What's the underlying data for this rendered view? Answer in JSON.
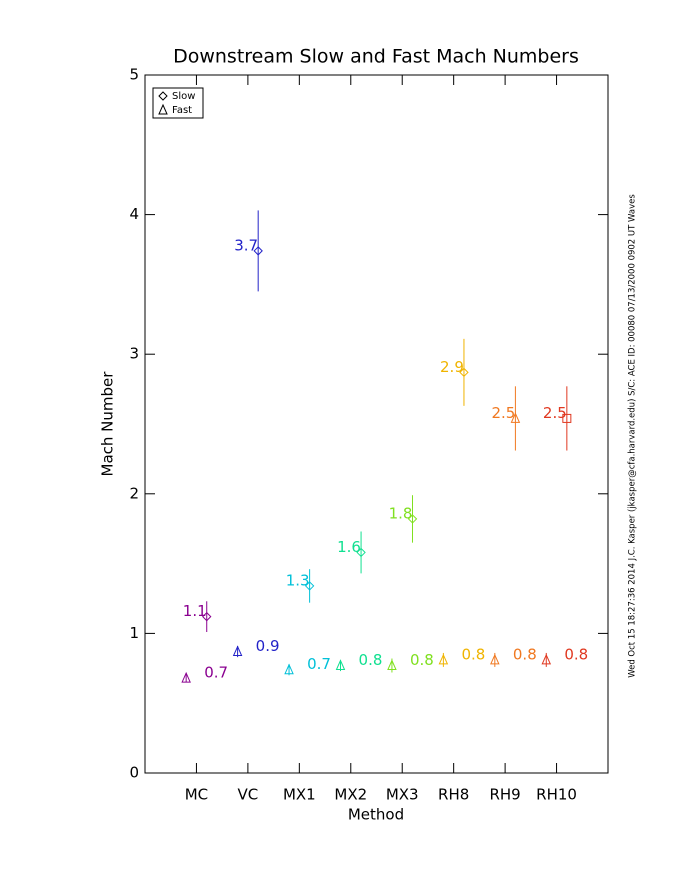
{
  "chart_data": {
    "type": "errorbar",
    "title": "Downstream Slow and Fast Mach Numbers",
    "x_label": "Method",
    "y_label": "Mach Number",
    "footnote": "Wed Oct 15 18:27:36 2014   J.C. Kasper (jkasper@cfa.harvard.edu)   S/C: ACE ID: 00080 07/13/2000   0902 UT Waves",
    "categories": [
      "MC",
      "VC",
      "MX1",
      "MX2",
      "MX3",
      "RH8",
      "RH9",
      "RH10"
    ],
    "colors": [
      "#8a0090",
      "#2222c8",
      "#00c0d8",
      "#10e090",
      "#80e020",
      "#f0b400",
      "#f07820",
      "#e03820"
    ],
    "ylim": [
      0,
      5
    ],
    "yticks": [
      0,
      1,
      2,
      3,
      4,
      5
    ],
    "legend": "upper left",
    "series": [
      {
        "name": "Slow",
        "marker": "diamond",
        "markers": [
          "diamond",
          "diamond",
          "diamond",
          "diamond",
          "diamond",
          "diamond",
          "triangle",
          "square"
        ],
        "values": [
          1.12,
          3.74,
          1.34,
          1.58,
          1.82,
          2.87,
          2.54,
          2.54
        ],
        "errors": [
          0.11,
          0.29,
          0.12,
          0.15,
          0.17,
          0.24,
          0.23,
          0.23
        ],
        "value_labels": [
          "1.1",
          "3.7",
          "1.3",
          "1.6",
          "1.8",
          "2.9",
          "2.5",
          "2.5"
        ]
      },
      {
        "name": "Fast",
        "marker": "triangle",
        "markers": [
          "triangle",
          "triangle",
          "triangle",
          "triangle",
          "triangle",
          "triangle",
          "triangle",
          "triangle"
        ],
        "values": [
          0.68,
          0.87,
          0.74,
          0.77,
          0.77,
          0.81,
          0.81,
          0.81
        ],
        "errors": [
          0.03,
          0.04,
          0.04,
          0.04,
          0.05,
          0.05,
          0.05,
          0.05
        ],
        "value_labels": [
          "0.7",
          "0.9",
          "0.7",
          "0.8",
          "0.8",
          "0.8",
          "0.8",
          "0.8"
        ]
      }
    ]
  }
}
